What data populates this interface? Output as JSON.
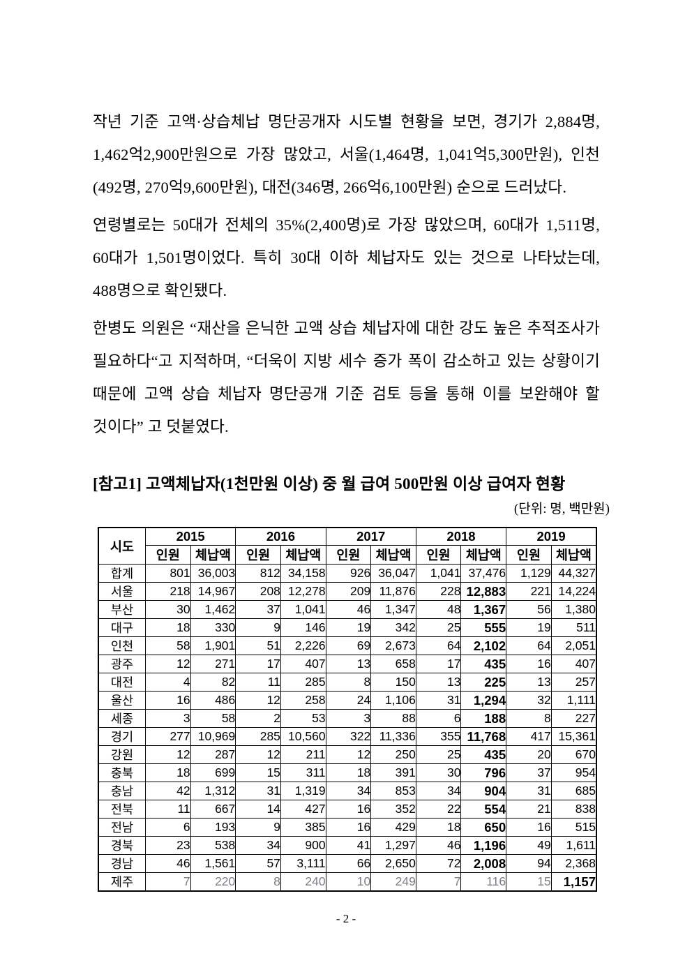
{
  "document": {
    "paragraphs": [
      "작년 기준 고액·상습체납 명단공개자 시도별 현황을 보면, 경기가 2,884명, 1,462억2,900만원으로 가장 많았고, 서울(1,464명, 1,041억5,300만원), 인천(492명, 270억9,600만원), 대전(346명, 266억6,100만원) 순으로 드러났다.",
      "연령별로는 50대가 전체의 35%(2,400명)로 가장 많았으며, 60대가 1,511명, 60대가 1,501명이었다. 특히 30대 이하 체납자도 있는 것으로 나타났는데, 488명으로 확인됐다.",
      "한병도 의원은 “재산을 은닉한 고액 상습 체납자에 대한 강도 높은 추적조사가 필요하다“고 지적하며, “더욱이 지방 세수 증가 폭이 감소하고 있는 상황이기 때문에 고액 상습 체납자 명단공개 기준 검토 등을 통해 이를 보완해야 할 것이다” 고 덧붙였다."
    ],
    "reference_title": "[참고1] 고액체납자(1천만원 이상) 중 월 급여 500만원 이상 급여자 현황",
    "unit_note": "(단위: 명, 백만원)",
    "page_number": "- 2 -"
  },
  "table": {
    "corner_label": "시도",
    "years": [
      "2015",
      "2016",
      "2017",
      "2018",
      "2019"
    ],
    "sub_headers": [
      "인원",
      "체납액"
    ],
    "rows": [
      {
        "region": "합계",
        "values": [
          "801",
          "36,003",
          "812",
          "34,158",
          "926",
          "36,047",
          "1,041",
          "37,476",
          "1,129",
          "44,327"
        ],
        "bold_cols": [],
        "gray": false
      },
      {
        "region": "서울",
        "values": [
          "218",
          "14,967",
          "208",
          "12,278",
          "209",
          "11,876",
          "228",
          "12,883",
          "221",
          "14,224"
        ],
        "bold_cols": [
          7
        ],
        "gray": false
      },
      {
        "region": "부산",
        "values": [
          "30",
          "1,462",
          "37",
          "1,041",
          "46",
          "1,347",
          "48",
          "1,367",
          "56",
          "1,380"
        ],
        "bold_cols": [
          7
        ],
        "gray": false
      },
      {
        "region": "대구",
        "values": [
          "18",
          "330",
          "9",
          "146",
          "19",
          "342",
          "25",
          "555",
          "19",
          "511"
        ],
        "bold_cols": [
          7
        ],
        "gray": false
      },
      {
        "region": "인천",
        "values": [
          "58",
          "1,901",
          "51",
          "2,226",
          "69",
          "2,673",
          "64",
          "2,102",
          "64",
          "2,051"
        ],
        "bold_cols": [
          7
        ],
        "gray": false
      },
      {
        "region": "광주",
        "values": [
          "12",
          "271",
          "17",
          "407",
          "13",
          "658",
          "17",
          "435",
          "16",
          "407"
        ],
        "bold_cols": [
          7
        ],
        "gray": false
      },
      {
        "region": "대전",
        "values": [
          "4",
          "82",
          "11",
          "285",
          "8",
          "150",
          "13",
          "225",
          "13",
          "257"
        ],
        "bold_cols": [
          7
        ],
        "gray": false
      },
      {
        "region": "울산",
        "values": [
          "16",
          "486",
          "12",
          "258",
          "24",
          "1,106",
          "31",
          "1,294",
          "32",
          "1,111"
        ],
        "bold_cols": [
          7
        ],
        "gray": false
      },
      {
        "region": "세종",
        "values": [
          "3",
          "58",
          "2",
          "53",
          "3",
          "88",
          "6",
          "188",
          "8",
          "227"
        ],
        "bold_cols": [
          7
        ],
        "gray": false
      },
      {
        "region": "경기",
        "values": [
          "277",
          "10,969",
          "285",
          "10,560",
          "322",
          "11,336",
          "355",
          "11,768",
          "417",
          "15,361"
        ],
        "bold_cols": [
          7
        ],
        "gray": false
      },
      {
        "region": "강원",
        "values": [
          "12",
          "287",
          "12",
          "211",
          "12",
          "250",
          "25",
          "435",
          "20",
          "670"
        ],
        "bold_cols": [
          7
        ],
        "gray": false
      },
      {
        "region": "충북",
        "values": [
          "18",
          "699",
          "15",
          "311",
          "18",
          "391",
          "30",
          "796",
          "37",
          "954"
        ],
        "bold_cols": [
          7
        ],
        "gray": false
      },
      {
        "region": "충남",
        "values": [
          "42",
          "1,312",
          "31",
          "1,319",
          "34",
          "853",
          "34",
          "904",
          "31",
          "685"
        ],
        "bold_cols": [
          7
        ],
        "gray": false
      },
      {
        "region": "전북",
        "values": [
          "11",
          "667",
          "14",
          "427",
          "16",
          "352",
          "22",
          "554",
          "21",
          "838"
        ],
        "bold_cols": [
          7
        ],
        "gray": false
      },
      {
        "region": "전남",
        "values": [
          "6",
          "193",
          "9",
          "385",
          "16",
          "429",
          "18",
          "650",
          "16",
          "515"
        ],
        "bold_cols": [
          7
        ],
        "gray": false
      },
      {
        "region": "경북",
        "values": [
          "23",
          "538",
          "34",
          "900",
          "41",
          "1,297",
          "46",
          "1,196",
          "49",
          "1,611"
        ],
        "bold_cols": [
          7
        ],
        "gray": false
      },
      {
        "region": "경남",
        "values": [
          "46",
          "1,561",
          "57",
          "3,111",
          "66",
          "2,650",
          "72",
          "2,008",
          "94",
          "2,368"
        ],
        "bold_cols": [
          7
        ],
        "gray": false
      },
      {
        "region": "제주",
        "values": [
          "7",
          "220",
          "8",
          "240",
          "10",
          "249",
          "7",
          "116",
          "15",
          "1,157"
        ],
        "bold_cols": [
          9
        ],
        "gray": true
      }
    ]
  },
  "colors": {
    "text": "#000000",
    "muted_row_text": "#7d7d85",
    "table_border": "#000000",
    "background": "#ffffff"
  }
}
